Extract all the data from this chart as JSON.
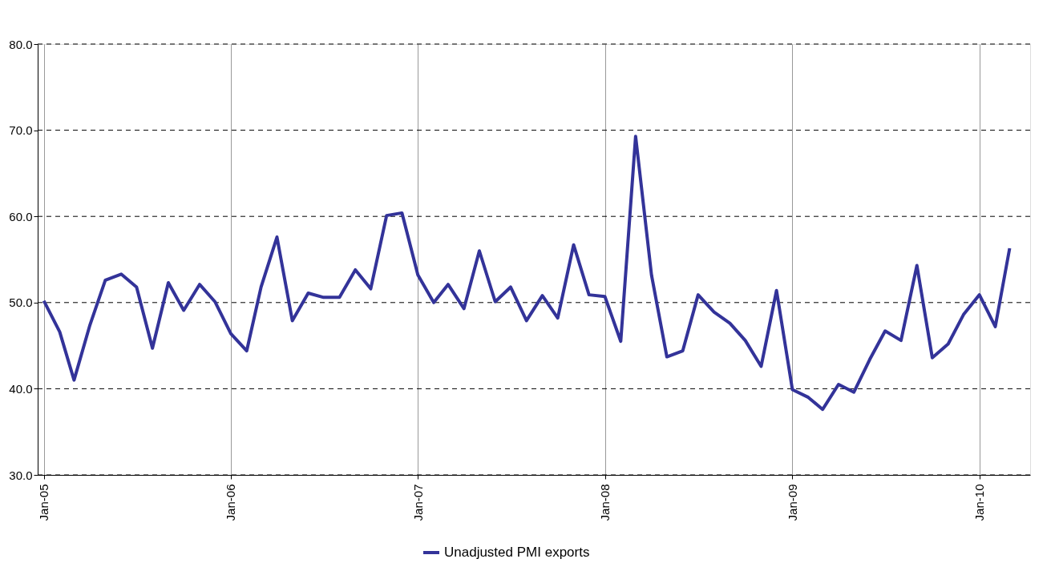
{
  "chart_data": {
    "type": "line",
    "x": [
      "2005-01",
      "2005-02",
      "2005-03",
      "2005-04",
      "2005-05",
      "2005-06",
      "2005-07",
      "2005-08",
      "2005-09",
      "2005-10",
      "2005-11",
      "2005-12",
      "2006-01",
      "2006-02",
      "2006-03",
      "2006-04",
      "2006-05",
      "2006-06",
      "2006-07",
      "2006-08",
      "2006-09",
      "2006-10",
      "2006-11",
      "2006-12",
      "2007-01",
      "2007-02",
      "2007-03",
      "2007-04",
      "2007-05",
      "2007-06",
      "2007-07",
      "2007-08",
      "2007-09",
      "2007-10",
      "2007-11",
      "2007-12",
      "2008-01",
      "2008-02",
      "2008-03",
      "2008-04",
      "2008-05",
      "2008-06",
      "2008-07",
      "2008-08",
      "2008-09",
      "2008-10",
      "2008-11",
      "2008-12",
      "2009-01",
      "2009-02",
      "2009-03",
      "2009-04",
      "2009-05",
      "2009-06",
      "2009-07",
      "2009-08",
      "2009-09",
      "2009-10",
      "2009-11",
      "2009-12",
      "2010-01",
      "2010-02",
      "2010-03"
    ],
    "series": [
      {
        "name": "Unadjusted PMI exports",
        "color": "#333399",
        "values": [
          50.2,
          46.6,
          41.0,
          47.4,
          52.6,
          53.3,
          51.8,
          44.7,
          52.3,
          49.1,
          52.1,
          50.1,
          46.4,
          44.4,
          51.8,
          57.6,
          47.9,
          51.1,
          50.6,
          50.6,
          53.8,
          51.6,
          60.1,
          60.4,
          53.2,
          50.0,
          52.1,
          49.3,
          56.0,
          50.1,
          51.8,
          47.9,
          50.8,
          48.2,
          56.7,
          50.9,
          50.7,
          45.5,
          69.3,
          53.2,
          43.7,
          44.4,
          50.9,
          48.9,
          47.6,
          45.6,
          42.6,
          51.4,
          39.9,
          39.0,
          37.6,
          40.5,
          39.6,
          43.4,
          46.7,
          45.6,
          54.3,
          43.6,
          45.2,
          48.6,
          50.9,
          47.2,
          56.3
        ]
      }
    ],
    "xlim": [
      "2004-12-20",
      "2010-04-10"
    ],
    "xticks": [
      {
        "value": "2005-01",
        "label": "Jan-05"
      },
      {
        "value": "2006-01",
        "label": "Jan-06"
      },
      {
        "value": "2007-01",
        "label": "Jan-07"
      },
      {
        "value": "2008-01",
        "label": "Jan-08"
      },
      {
        "value": "2009-01",
        "label": "Jan-09"
      },
      {
        "value": "2010-01",
        "label": "Jan-10"
      }
    ],
    "ylim": [
      30,
      80
    ],
    "yticks": [
      {
        "value": 30,
        "label": "30.0"
      },
      {
        "value": 40,
        "label": "40.0"
      },
      {
        "value": 50,
        "label": "50.0"
      },
      {
        "value": 60,
        "label": "60.0"
      },
      {
        "value": 70,
        "label": "70.0"
      },
      {
        "value": 80,
        "label": "80.0"
      }
    ],
    "grid": true,
    "legend": "bottom",
    "marker": "none",
    "line_style": "solid"
  }
}
